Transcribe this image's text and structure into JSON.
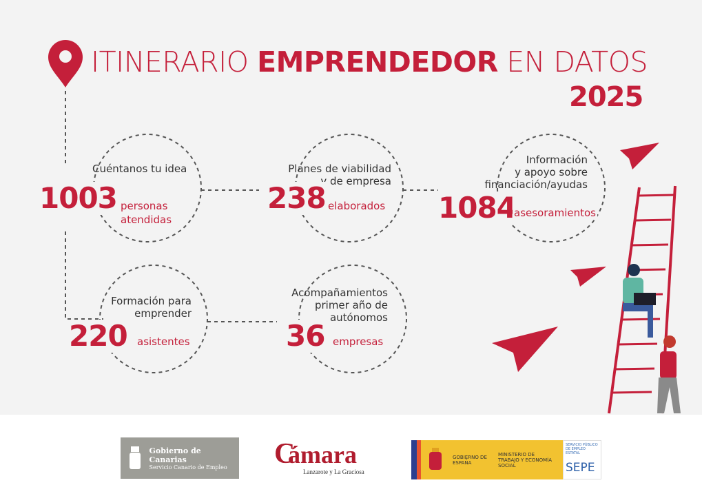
{
  "header": {
    "title_light_1": "ITINERARIO ",
    "title_bold": "EMPRENDEDOR",
    "title_light_2": " EN DATOS",
    "year": "2025",
    "icon": "map-pin-icon"
  },
  "accent_color": "#c41f3a",
  "stats": [
    {
      "label_lines": [
        "Cuéntanos tu idea"
      ],
      "value": "1003",
      "unit_lines": [
        "personas",
        "atendidas"
      ]
    },
    {
      "label_lines": [
        "Planes de viabilidad",
        "y de empresa"
      ],
      "value": "238",
      "unit_lines": [
        "elaborados"
      ]
    },
    {
      "label_lines": [
        "Información",
        "y apoyo sobre",
        "financiación/ayudas"
      ],
      "value": "1084",
      "unit_lines": [
        "asesoramientos"
      ]
    },
    {
      "label_lines": [
        "Formación para",
        "emprender"
      ],
      "value": "220",
      "unit_lines": [
        "asistentes"
      ]
    },
    {
      "label_lines": [
        "Acompañamientos",
        "primer año de",
        "autónomos"
      ],
      "value": "36",
      "unit_lines": [
        "empresas"
      ]
    }
  ],
  "footer": {
    "gobierno_canarias": {
      "name": "Gobierno de Canarias",
      "sub": "Servicio Canario de Empleo"
    },
    "camara": {
      "name": "ámara",
      "letter": "C",
      "sub": "Lanzarote y La Graciosa"
    },
    "spain": {
      "gobierno": "GOBIERNO DE ESPAÑA",
      "ministerio": "MINISTERIO DE TRABAJO Y ECONOMÍA SOCIAL",
      "sepe_small": "SERVICIO PÚBLICO DE EMPLEO ESTATAL",
      "sepe": "SEPE"
    }
  }
}
